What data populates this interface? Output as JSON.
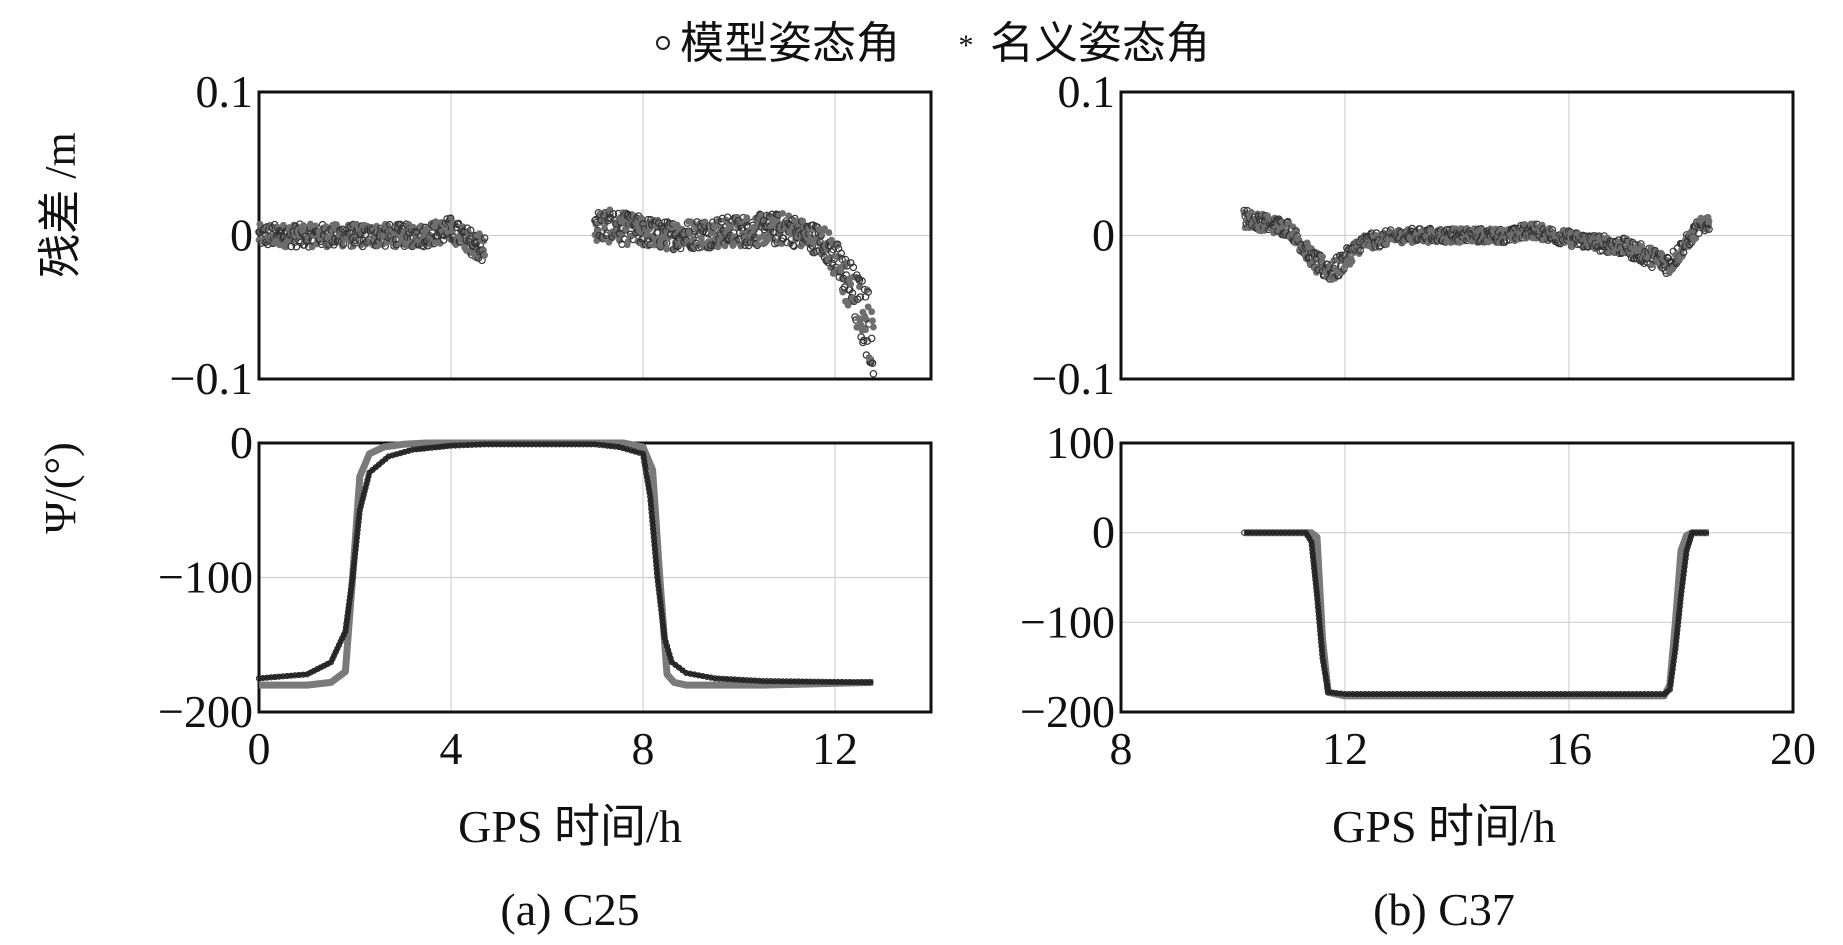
{
  "legend": {
    "entries": [
      {
        "label": "模型姿态角",
        "marker": "open-circle",
        "color": "#222222"
      },
      {
        "label": "名义姿态角",
        "marker": "asterisk",
        "color": "#777777"
      }
    ],
    "placement": "top-center"
  },
  "panels": [
    {
      "caption": "(a) C25",
      "xlabel": "GPS 时间/h",
      "xlim": [
        0,
        14
      ],
      "xticks": [
        "0",
        "4",
        "8",
        "12"
      ],
      "xtick_values": [
        0,
        4,
        8,
        12
      ],
      "top_ylabel": "残差 /m",
      "top_ylim": [
        -0.1,
        0.1
      ],
      "top_yticks": [
        "0.1",
        "0",
        "−0.1"
      ],
      "top_ytick_values": [
        0.1,
        0,
        -0.1
      ],
      "bottom_ylabel": "Ψ/(°)",
      "bottom_ylim": [
        -200,
        0
      ],
      "bottom_yticks": [
        "0",
        "−100",
        "−200"
      ],
      "bottom_ytick_values": [
        0,
        -100,
        -200
      ]
    },
    {
      "caption": "(b) C37",
      "xlabel": "GPS 时间/h",
      "xlim": [
        8,
        20
      ],
      "xticks": [
        "8",
        "12",
        "16",
        "20"
      ],
      "xtick_values": [
        8,
        12,
        16,
        20
      ],
      "top_ylabel": "",
      "top_ylim": [
        -0.1,
        0.1
      ],
      "top_yticks": [
        "0.1",
        "0",
        "−0.1"
      ],
      "top_ytick_values": [
        0.1,
        0,
        -0.1
      ],
      "bottom_ylabel": "",
      "bottom_ylim": [
        -200,
        100
      ],
      "bottom_yticks": [
        "100",
        "0",
        "−100",
        "−200"
      ],
      "bottom_ytick_values": [
        100,
        0,
        -100,
        -200
      ]
    }
  ],
  "chart_data": [
    {
      "type": "scatter",
      "panel": "(a) C25",
      "title": "",
      "xlabel": "GPS 时间/h",
      "ylabel": "残差 /m",
      "xlim": [
        0,
        14
      ],
      "ylim": [
        -0.1,
        0.1
      ],
      "grid": true,
      "segments": [
        {
          "x_start": 0.0,
          "x_end": 4.7,
          "noise": 0.008,
          "trend": [
            [
              0,
              0
            ],
            [
              3.4,
              0
            ],
            [
              4.0,
              0.004
            ],
            [
              4.7,
              -0.01
            ]
          ]
        },
        {
          "x_start": 7.0,
          "x_end": 12.8,
          "noise": 0.01,
          "trend": [
            [
              7.0,
              0.008
            ],
            [
              8.5,
              0
            ],
            [
              11.0,
              0.005
            ],
            [
              11.8,
              -0.005
            ],
            [
              12.3,
              -0.035
            ],
            [
              12.8,
              -0.07
            ]
          ]
        }
      ],
      "series": [
        {
          "name": "模型姿态角"
        },
        {
          "name": "名义姿态角"
        }
      ]
    },
    {
      "type": "scatter",
      "panel": "(b) C37",
      "title": "",
      "xlabel": "GPS 时间/h",
      "ylabel": "残差 /m",
      "xlim": [
        8,
        20
      ],
      "ylim": [
        -0.1,
        0.1
      ],
      "grid": true,
      "segments": [
        {
          "x_start": 10.2,
          "x_end": 18.5,
          "noise": 0.005,
          "trend": [
            [
              10.2,
              0.012
            ],
            [
              11.0,
              0.005
            ],
            [
              11.5,
              -0.02
            ],
            [
              11.8,
              -0.025
            ],
            [
              12.3,
              -0.005
            ],
            [
              13.0,
              0
            ],
            [
              15.0,
              0
            ],
            [
              15.3,
              0.004
            ],
            [
              16.0,
              -0.002
            ],
            [
              17.0,
              -0.008
            ],
            [
              17.8,
              -0.02
            ],
            [
              18.0,
              -0.01
            ],
            [
              18.3,
              0.005
            ],
            [
              18.5,
              0.01
            ]
          ]
        }
      ],
      "series": [
        {
          "name": "模型姿态角"
        },
        {
          "name": "名义姿态角"
        }
      ]
    },
    {
      "type": "line",
      "panel": "(a) C25",
      "title": "",
      "xlabel": "GPS 时间/h",
      "ylabel": "Ψ/(°)",
      "xlim": [
        0,
        14
      ],
      "ylim": [
        -200,
        0
      ],
      "grid": true,
      "series": [
        {
          "name": "模型姿态角",
          "marker": "open-circle",
          "x": [
            0,
            1.0,
            1.5,
            1.8,
            1.95,
            2.1,
            2.3,
            2.7,
            3.2,
            4.0,
            4.7,
            7.0,
            7.5,
            8.0,
            8.15,
            8.3,
            8.45,
            8.6,
            8.9,
            9.5,
            10.5,
            12.8
          ],
          "y": [
            -175,
            -172,
            -163,
            -140,
            -100,
            -50,
            -22,
            -10,
            -5,
            -2,
            -1,
            -1,
            -3,
            -8,
            -40,
            -100,
            -145,
            -163,
            -171,
            -175,
            -177,
            -178
          ]
        },
        {
          "name": "名义姿态角",
          "marker": "asterisk",
          "x": [
            0,
            1.0,
            1.5,
            1.8,
            1.95,
            2.1,
            2.3,
            2.6,
            3.0,
            3.5,
            4.7,
            7.0,
            7.6,
            8.0,
            8.2,
            8.35,
            8.5,
            8.65,
            8.9,
            9.5,
            10.5,
            12.8
          ],
          "y": [
            -180,
            -180,
            -178,
            -170,
            -100,
            -25,
            -8,
            -3,
            -1,
            0,
            0,
            0,
            0,
            -3,
            -20,
            -100,
            -172,
            -178,
            -180,
            -180,
            -180,
            -178
          ]
        }
      ]
    },
    {
      "type": "line",
      "panel": "(b) C37",
      "title": "",
      "xlabel": "GPS 时间/h",
      "ylabel": "Ψ/(°)",
      "xlim": [
        8,
        20
      ],
      "ylim": [
        -200,
        100
      ],
      "grid": true,
      "series": [
        {
          "name": "模型姿态角",
          "marker": "open-circle",
          "x": [
            10.2,
            11.3,
            11.4,
            11.5,
            11.6,
            11.7,
            12.0,
            16.0,
            17.7,
            17.8,
            17.9,
            18.0,
            18.1,
            18.2,
            18.5
          ],
          "y": [
            0,
            0,
            -10,
            -70,
            -140,
            -178,
            -180,
            -180,
            -180,
            -175,
            -130,
            -70,
            -20,
            0,
            0
          ]
        },
        {
          "name": "名义姿态角",
          "marker": "asterisk",
          "x": [
            10.2,
            11.4,
            11.5,
            11.6,
            11.7,
            12.0,
            16.0,
            17.7,
            17.8,
            17.9,
            18.0,
            18.1,
            18.2,
            18.5
          ],
          "y": [
            0,
            0,
            -5,
            -120,
            -178,
            -182,
            -182,
            -182,
            -170,
            -100,
            -20,
            -3,
            0,
            0
          ]
        }
      ]
    }
  ]
}
